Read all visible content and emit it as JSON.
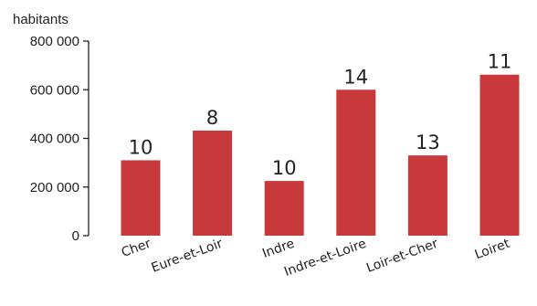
{
  "chart_data": {
    "type": "bar",
    "ylabel": "habitants",
    "ylim": [
      0,
      800000
    ],
    "yticks": [
      0,
      200000,
      400000,
      600000,
      800000
    ],
    "ytick_labels": [
      "0",
      "200 000",
      "400 000",
      "600 000",
      "800 000"
    ],
    "categories": [
      "Cher",
      "Eure-et-Loir",
      "Indre",
      "Indre-et-Loire",
      "Loir-et-Cher",
      "Loiret"
    ],
    "values": [
      310000,
      432000,
      225000,
      600000,
      330000,
      662000
    ],
    "data_labels": [
      "10",
      "8",
      "10",
      "14",
      "13",
      "11"
    ],
    "bar_color": "#c8393b",
    "grid": false,
    "legend": "none"
  }
}
